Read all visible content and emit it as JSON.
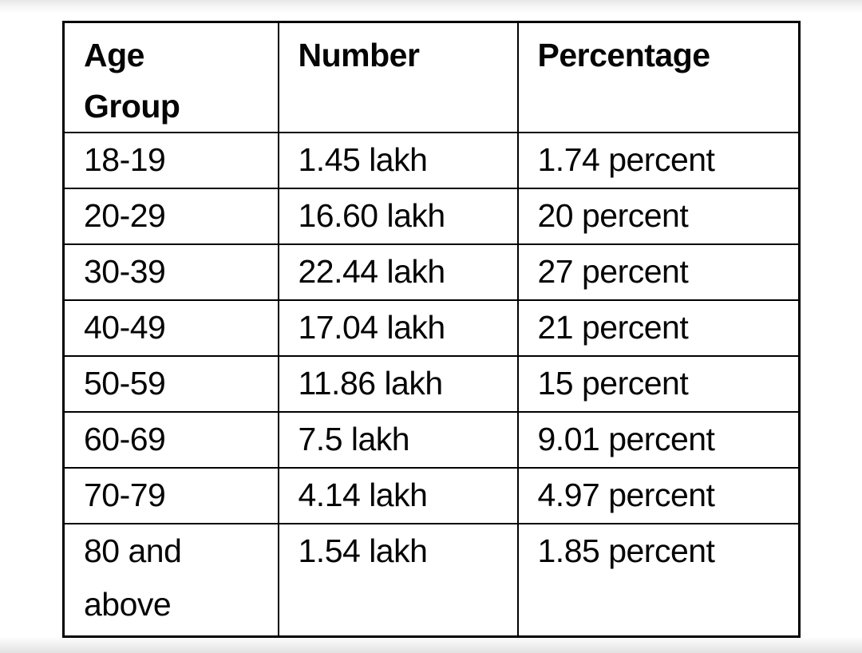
{
  "page": {
    "background_color": "#ffffff",
    "edge_band_color": "#e7e7e7",
    "text_color": "#050505",
    "border_color": "#000000"
  },
  "table": {
    "header": {
      "age_group": "Age Group",
      "number": "Number",
      "percentage": "Percentage"
    },
    "rows": [
      {
        "age_group": "18-19",
        "number": "1.45 lakh",
        "percentage": "1.74 percent"
      },
      {
        "age_group": "20-29",
        "number": "16.60 lakh",
        "percentage": "20 percent"
      },
      {
        "age_group": "30-39",
        "number": "22.44 lakh",
        "percentage": "27 percent"
      },
      {
        "age_group": "40-49",
        "number": "17.04 lakh",
        "percentage": "21 percent"
      },
      {
        "age_group": "50-59",
        "number": "11.86 lakh",
        "percentage": "15 percent"
      },
      {
        "age_group": "60-69",
        "number": "7.5 lakh",
        "percentage": "9.01 percent"
      },
      {
        "age_group": "70-79",
        "number": "4.14 lakh",
        "percentage": "4.97 percent"
      },
      {
        "age_group": "80 and above",
        "number": "1.54 lakh",
        "percentage": "1.85 percent"
      }
    ]
  },
  "chart_data": {
    "type": "table",
    "columns": [
      "Age Group",
      "Number",
      "Percentage"
    ],
    "rows": [
      [
        "18-19",
        "1.45 lakh",
        "1.74 percent"
      ],
      [
        "20-29",
        "16.60 lakh",
        "20 percent"
      ],
      [
        "30-39",
        "22.44 lakh",
        "27 percent"
      ],
      [
        "40-49",
        "17.04 lakh",
        "21 percent"
      ],
      [
        "50-59",
        "11.86 lakh",
        "15 percent"
      ],
      [
        "60-69",
        "7.5 lakh",
        "9.01 percent"
      ],
      [
        "70-79",
        "4.14 lakh",
        "4.97 percent"
      ],
      [
        "80 and above",
        "1.54 lakh",
        "1.85 percent"
      ]
    ],
    "numeric": {
      "age_groups": [
        "18-19",
        "20-29",
        "30-39",
        "40-49",
        "50-59",
        "60-69",
        "70-79",
        "80 and above"
      ],
      "number_lakh": [
        1.45,
        16.6,
        22.44,
        17.04,
        11.86,
        7.5,
        4.14,
        1.54
      ],
      "percent": [
        1.74,
        20,
        27,
        21,
        15,
        9.01,
        4.97,
        1.85
      ]
    }
  }
}
